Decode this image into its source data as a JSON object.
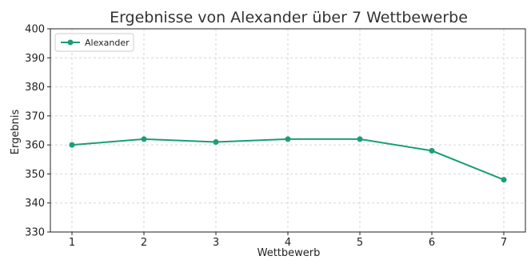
{
  "chart_data": {
    "type": "line",
    "title": "Ergebnisse von Alexander über 7 Wettbewerbe",
    "xlabel": "Wettbewerb",
    "ylabel": "Ergebnis",
    "x": [
      1,
      2,
      3,
      4,
      5,
      6,
      7
    ],
    "series": [
      {
        "name": "Alexander",
        "values": [
          360,
          362,
          361,
          362,
          362,
          358,
          348
        ],
        "color": "#1a9e77"
      }
    ],
    "xticks": [
      1,
      2,
      3,
      4,
      5,
      6,
      7
    ],
    "yticks": [
      330,
      340,
      350,
      360,
      370,
      380,
      390,
      400
    ],
    "ylim": [
      330,
      400
    ],
    "grid": true,
    "legend": "top-left"
  }
}
